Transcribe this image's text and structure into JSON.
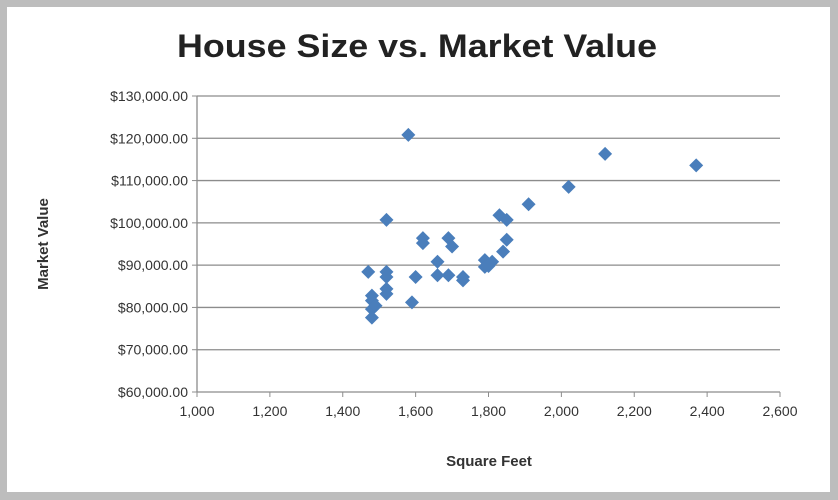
{
  "chart_data": {
    "type": "scatter",
    "title": "House Size vs. Market Value",
    "xlabel": "Square Feet",
    "ylabel": "Market Value",
    "xlim": [
      1000,
      2600
    ],
    "ylim": [
      60000,
      130000
    ],
    "x_ticks": [
      "1,000",
      "1,200",
      "1,400",
      "1,600",
      "1,800",
      "2,000",
      "2,200",
      "2,400",
      "2,600"
    ],
    "y_ticks": [
      "$60,000.00",
      "$70,000.00",
      "$80,000.00",
      "$90,000.00",
      "$100,000.00",
      "$110,000.00",
      "$120,000.00",
      "$130,000.00"
    ],
    "grid": "horizontal",
    "marker": "diamond",
    "color": "#4a7ebb",
    "points": [
      [
        1580,
        120800
      ],
      [
        2120,
        116300
      ],
      [
        2370,
        113600
      ],
      [
        2020,
        108500
      ],
      [
        1910,
        104400
      ],
      [
        1520,
        100700
      ],
      [
        1830,
        101800
      ],
      [
        1850,
        100700
      ],
      [
        1620,
        96400
      ],
      [
        1620,
        95200
      ],
      [
        1690,
        96400
      ],
      [
        1700,
        94400
      ],
      [
        1850,
        96000
      ],
      [
        1840,
        93200
      ],
      [
        1470,
        88400
      ],
      [
        1520,
        88400
      ],
      [
        1520,
        87200
      ],
      [
        1600,
        87200
      ],
      [
        1660,
        90800
      ],
      [
        1660,
        87600
      ],
      [
        1690,
        87600
      ],
      [
        1730,
        87200
      ],
      [
        1730,
        86400
      ],
      [
        1790,
        91200
      ],
      [
        1790,
        89600
      ],
      [
        1810,
        90800
      ],
      [
        1800,
        89800
      ],
      [
        1480,
        82800
      ],
      [
        1480,
        81600
      ],
      [
        1480,
        79600
      ],
      [
        1480,
        77600
      ],
      [
        1520,
        84400
      ],
      [
        1520,
        83200
      ],
      [
        1590,
        81200
      ],
      [
        1490,
        80400
      ]
    ]
  }
}
